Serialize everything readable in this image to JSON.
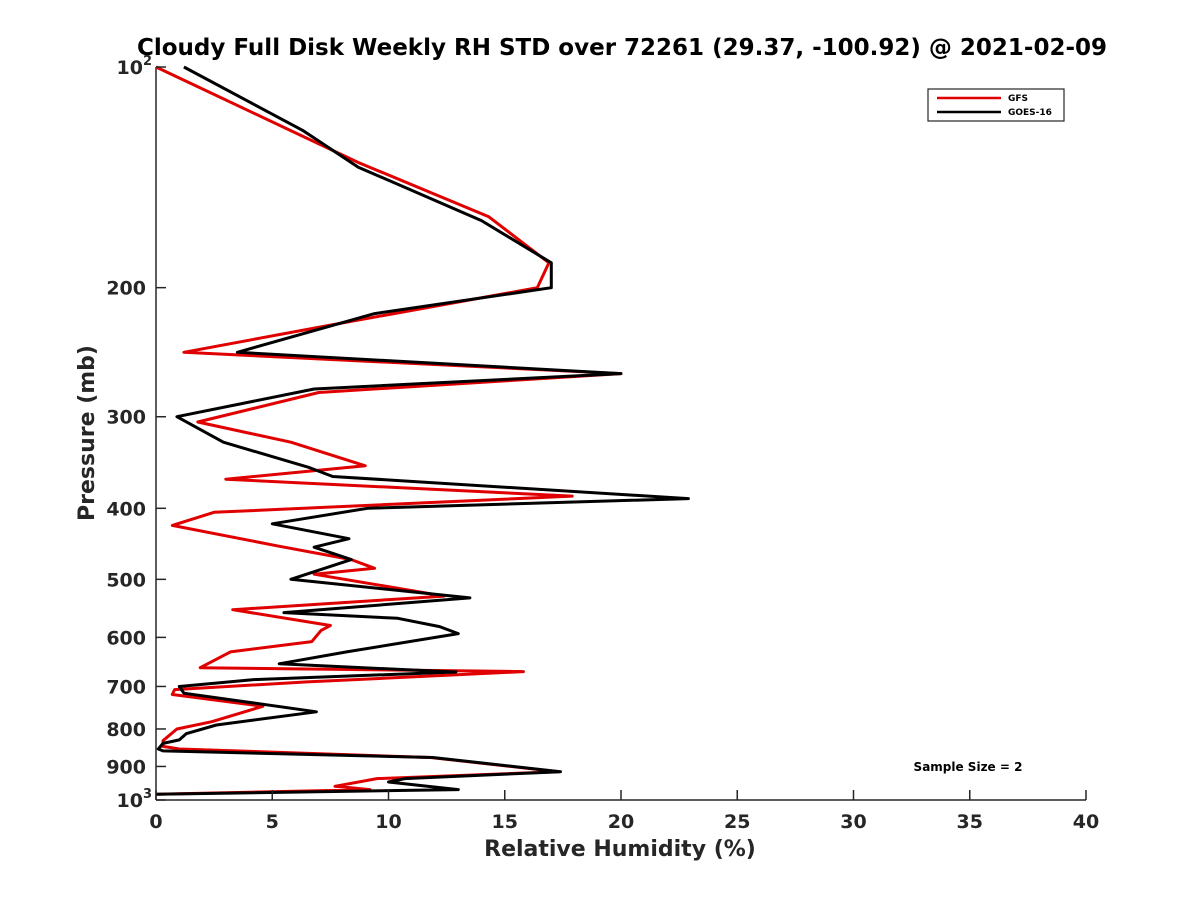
{
  "chart_data": {
    "type": "line",
    "title": "Cloudy Full Disk Weekly RH STD over 72261 (29.37, -100.92) @ 2021-02-09",
    "xlabel": "Relative Humidity (%)",
    "ylabel": "Pressure (mb)",
    "xlim": [
      0,
      40
    ],
    "ylim": [
      100,
      1000
    ],
    "y_scale": "log",
    "y_reversed": true,
    "grid": false,
    "legend_position": "top-right",
    "xticks": [
      "0",
      "5",
      "10",
      "15",
      "20",
      "25",
      "30",
      "35",
      "40"
    ],
    "yticks": [
      {
        "value": 100,
        "base": "10",
        "exp": "2"
      },
      {
        "value": 200,
        "label": "200"
      },
      {
        "value": 300,
        "label": "300"
      },
      {
        "value": 400,
        "label": "400"
      },
      {
        "value": 500,
        "label": "500"
      },
      {
        "value": 600,
        "label": "600"
      },
      {
        "value": 700,
        "label": "700"
      },
      {
        "value": 800,
        "label": "800"
      },
      {
        "value": 900,
        "label": "900"
      },
      {
        "value": 1000,
        "base": "10",
        "exp": "3"
      }
    ],
    "annotation": "Sample Size = 2",
    "series": [
      {
        "name": "GFS",
        "color": "#e00000",
        "points": [
          [
            0.0,
            100
          ],
          [
            8.7,
            135
          ],
          [
            14.3,
            160
          ],
          [
            16.9,
            185
          ],
          [
            16.4,
            200
          ],
          [
            7.5,
            225
          ],
          [
            1.2,
            245
          ],
          [
            20.0,
            262
          ],
          [
            7.0,
            278
          ],
          [
            1.8,
            305
          ],
          [
            5.8,
            325
          ],
          [
            9.0,
            350
          ],
          [
            3.0,
            365
          ],
          [
            17.9,
            385
          ],
          [
            2.5,
            405
          ],
          [
            0.7,
            422
          ],
          [
            5.2,
            450
          ],
          [
            8.4,
            470
          ],
          [
            9.4,
            483
          ],
          [
            6.8,
            492
          ],
          [
            12.4,
            527
          ],
          [
            3.3,
            550
          ],
          [
            7.5,
            578
          ],
          [
            7.1,
            587
          ],
          [
            6.7,
            608
          ],
          [
            3.2,
            628
          ],
          [
            1.9,
            660
          ],
          [
            15.8,
            668
          ],
          [
            6.5,
            690
          ],
          [
            0.8,
            707
          ],
          [
            0.7,
            718
          ],
          [
            4.6,
            745
          ],
          [
            2.4,
            782
          ],
          [
            0.9,
            800
          ],
          [
            0.3,
            830
          ],
          [
            0.3,
            845
          ],
          [
            1.0,
            852
          ],
          [
            11.8,
            875
          ],
          [
            17.3,
            915
          ],
          [
            9.5,
            935
          ],
          [
            7.7,
            958
          ],
          [
            9.2,
            968
          ],
          [
            0.0,
            982
          ]
        ]
      },
      {
        "name": "GOES-16",
        "color": "#000000",
        "points": [
          [
            1.2,
            100
          ],
          [
            6.3,
            122
          ],
          [
            8.7,
            137
          ],
          [
            14.0,
            162
          ],
          [
            17.0,
            185
          ],
          [
            17.0,
            200
          ],
          [
            9.4,
            217
          ],
          [
            3.5,
            245
          ],
          [
            20.0,
            262
          ],
          [
            6.8,
            275
          ],
          [
            0.9,
            300
          ],
          [
            2.9,
            325
          ],
          [
            6.6,
            352
          ],
          [
            7.6,
            362
          ],
          [
            22.9,
            388
          ],
          [
            9.1,
            400
          ],
          [
            5.0,
            420
          ],
          [
            8.3,
            440
          ],
          [
            6.8,
            452
          ],
          [
            8.4,
            470
          ],
          [
            5.8,
            500
          ],
          [
            13.5,
            530
          ],
          [
            5.5,
            555
          ],
          [
            10.4,
            565
          ],
          [
            12.2,
            580
          ],
          [
            13.0,
            593
          ],
          [
            8.2,
            628
          ],
          [
            5.3,
            652
          ],
          [
            12.9,
            669
          ],
          [
            4.2,
            685
          ],
          [
            1.0,
            700
          ],
          [
            1.2,
            715
          ],
          [
            6.9,
            758
          ],
          [
            2.6,
            790
          ],
          [
            1.3,
            812
          ],
          [
            1.0,
            828
          ],
          [
            0.3,
            837
          ],
          [
            0.1,
            852
          ],
          [
            0.3,
            857
          ],
          [
            11.9,
            875
          ],
          [
            17.4,
            915
          ],
          [
            10.7,
            935
          ],
          [
            10.0,
            945
          ],
          [
            13.0,
            968
          ],
          [
            0.0,
            982
          ]
        ]
      }
    ]
  }
}
